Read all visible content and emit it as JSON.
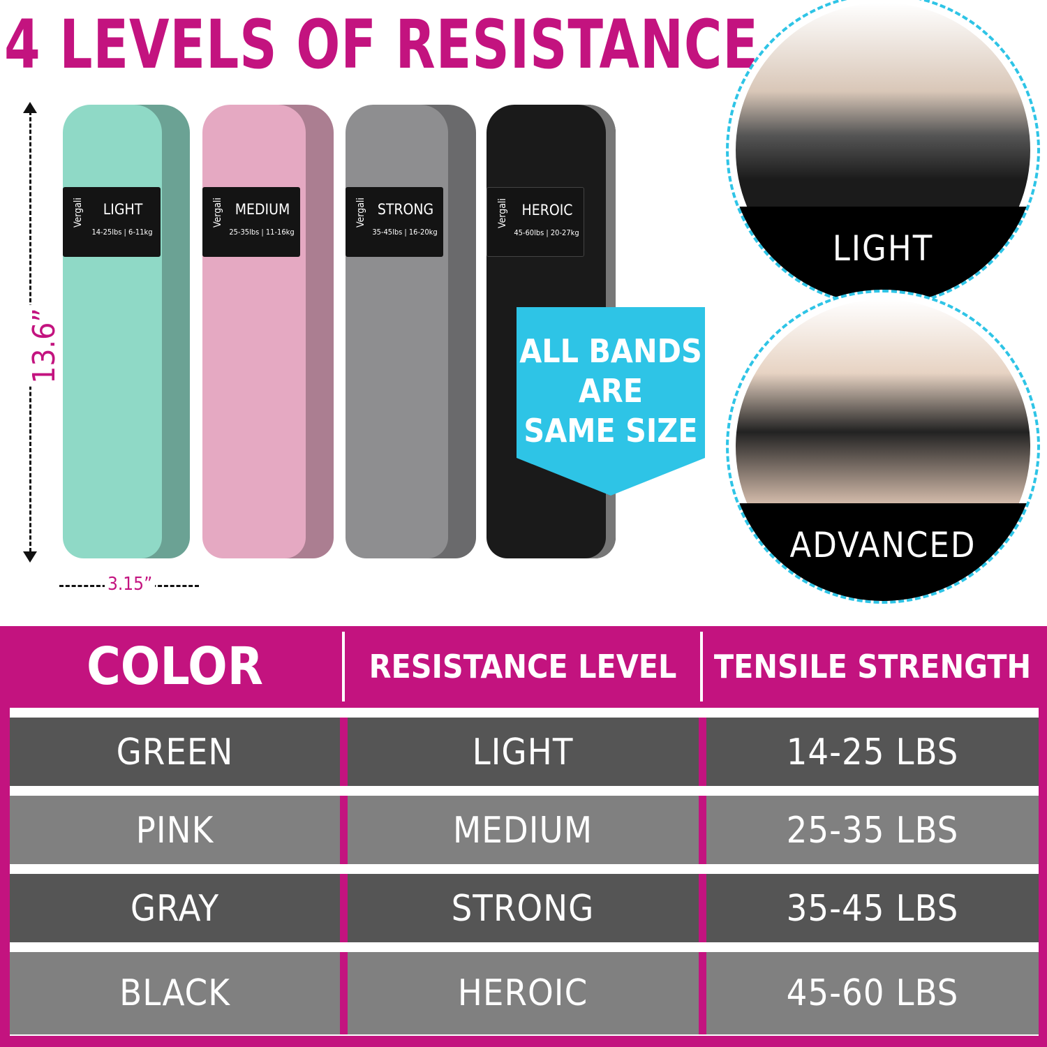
{
  "title": "4 LEVELS OF RESISTANCE",
  "dimensions": {
    "height": "13.6”",
    "width": "3.15”"
  },
  "bands": [
    {
      "brand": "Vergali",
      "level": "LIGHT",
      "spec": "14-25lbs | 6-11kg",
      "color": "#8fd9c6"
    },
    {
      "brand": "Vergali",
      "level": "MEDIUM",
      "spec": "25-35lbs | 11-16kg",
      "color": "#e5a9c2"
    },
    {
      "brand": "Vergali",
      "level": "STRONG",
      "spec": "35-45lbs | 16-20kg",
      "color": "#8e8e90"
    },
    {
      "brand": "Vergali",
      "level": "HEROIC",
      "spec": "45-60lbs | 20-27kg",
      "color": "#1a1a1a"
    }
  ],
  "promo": {
    "line1": "ALL BANDS",
    "line2": "ARE",
    "line3": "SAME SIZE"
  },
  "circles": [
    {
      "caption": "LIGHT"
    },
    {
      "caption": "ADVANCED"
    }
  ],
  "table": {
    "headers": [
      "COLOR",
      "RESISTANCE LEVEL",
      "TENSILE STRENGTH"
    ],
    "rows": [
      [
        "GREEN",
        "LIGHT",
        "14-25 LBS"
      ],
      [
        "PINK",
        "MEDIUM",
        "25-35 LBS"
      ],
      [
        "GRAY",
        "STRONG",
        "35-45 LBS"
      ],
      [
        "BLACK",
        "HEROIC",
        "45-60 LBS"
      ]
    ]
  },
  "colors": {
    "accent": "#c3137f",
    "promo": "#2ec4e6",
    "row_dark": "#555555",
    "row_light": "#808080"
  }
}
